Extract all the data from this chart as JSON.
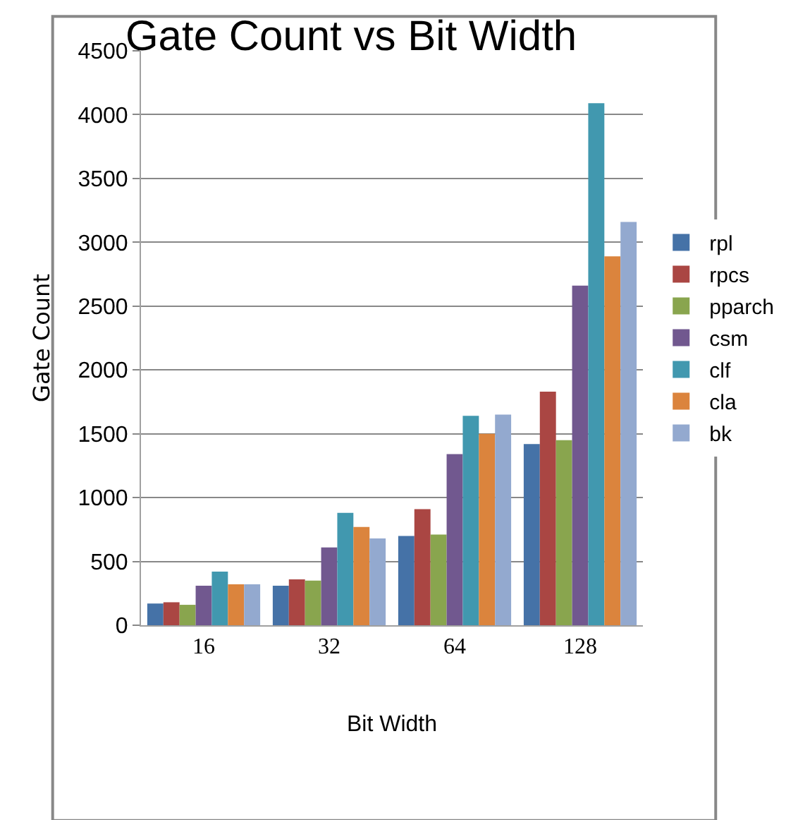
{
  "chart_data": {
    "type": "bar",
    "title": "Gate Count vs Bit Width",
    "xlabel": "Bit Width",
    "ylabel": "Gate Count",
    "categories": [
      "16",
      "32",
      "64",
      "128"
    ],
    "series": [
      {
        "name": "rpl",
        "color": "#4572a7",
        "values": [
          170,
          310,
          700,
          1420
        ]
      },
      {
        "name": "rpcs",
        "color": "#aa4643",
        "values": [
          180,
          360,
          910,
          1830
        ]
      },
      {
        "name": "pparch",
        "color": "#89a54e",
        "values": [
          160,
          350,
          710,
          1450
        ]
      },
      {
        "name": "csm",
        "color": "#71588f",
        "values": [
          310,
          610,
          1340,
          2660
        ]
      },
      {
        "name": "clf",
        "color": "#4198af",
        "values": [
          420,
          880,
          1640,
          4090
        ]
      },
      {
        "name": "cla",
        "color": "#db843d",
        "values": [
          320,
          770,
          1500,
          2890
        ]
      },
      {
        "name": "bk",
        "color": "#93a9cf",
        "values": [
          320,
          680,
          1650,
          3160
        ]
      }
    ],
    "ylim": [
      0,
      4500
    ],
    "yticks": [
      0,
      500,
      1000,
      1500,
      2000,
      2500,
      3000,
      3500,
      4000,
      4500
    ],
    "grid": "y",
    "legend": "right"
  }
}
